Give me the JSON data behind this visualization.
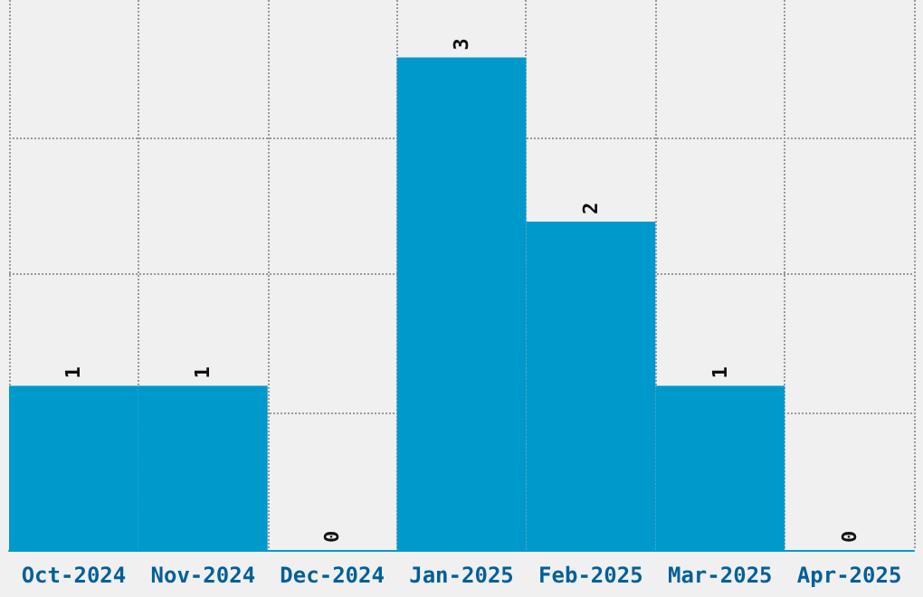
{
  "chart_data": {
    "type": "bar",
    "categories": [
      "Oct-2024",
      "Nov-2024",
      "Dec-2024",
      "Jan-2025",
      "Feb-2025",
      "Mar-2025",
      "Apr-2025"
    ],
    "values": [
      1,
      1,
      0,
      3,
      2,
      1,
      0
    ],
    "color": "#0099cc",
    "ylim": [
      0,
      3.35
    ],
    "yticks": [
      {
        "value": 0,
        "label": null
      },
      {
        "value": 0.84,
        "label": null
      },
      {
        "value": 1.68,
        "label": null
      },
      {
        "value": 2.51,
        "label": null
      }
    ],
    "tick_labels": "x",
    "data_labels": true,
    "grid": true
  }
}
